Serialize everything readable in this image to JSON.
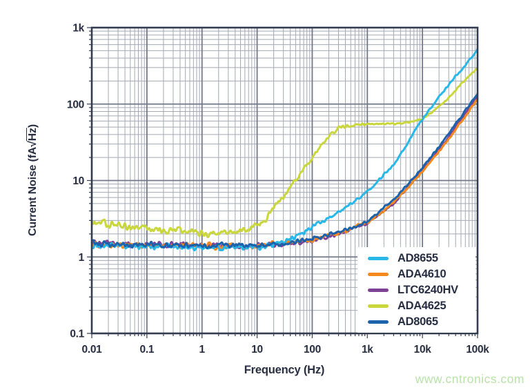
{
  "chart_data": {
    "type": "line",
    "title": "",
    "xlabel": "Frequency (Hz)",
    "ylabel": "Current Noise (fA√Hz)",
    "ylabel_parts": {
      "prefix": "Current Noise (fA",
      "radical": "√",
      "radicand": "Hz",
      "suffix": ")"
    },
    "xscale": "log",
    "yscale": "log",
    "xlim": [
      0.01,
      100000
    ],
    "ylim": [
      0.1,
      1000
    ],
    "grid": "major and minor log grid, both axes",
    "legend_position": "lower right",
    "x_ticks": [
      {
        "value": 0.01,
        "label": "0.01"
      },
      {
        "value": 0.1,
        "label": "0.1"
      },
      {
        "value": 1,
        "label": "1"
      },
      {
        "value": 10,
        "label": "10"
      },
      {
        "value": 100,
        "label": "100"
      },
      {
        "value": 1000,
        "label": "1k"
      },
      {
        "value": 10000,
        "label": "10k"
      },
      {
        "value": 100000,
        "label": "100k"
      }
    ],
    "y_ticks": [
      {
        "value": 0.1,
        "label": "0.1"
      },
      {
        "value": 1,
        "label": "1"
      },
      {
        "value": 10,
        "label": "10"
      },
      {
        "value": 100,
        "label": "100"
      },
      {
        "value": 1000,
        "label": "1k"
      }
    ],
    "series": [
      {
        "name": "AD8655",
        "color": "#29b7e8",
        "points_hz_fa": [
          [
            0.012,
            1.42
          ],
          [
            0.03,
            1.4
          ],
          [
            0.1,
            1.37
          ],
          [
            0.3,
            1.35
          ],
          [
            1,
            1.34
          ],
          [
            3,
            1.34
          ],
          [
            10,
            1.36
          ],
          [
            20,
            1.45
          ],
          [
            40,
            1.72
          ],
          [
            70,
            2.1
          ],
          [
            100,
            2.5
          ],
          [
            200,
            3.2
          ],
          [
            300,
            3.8
          ],
          [
            500,
            5.0
          ],
          [
            700,
            5.9
          ],
          [
            1000,
            7.2
          ],
          [
            2000,
            12
          ],
          [
            3000,
            16
          ],
          [
            5000,
            28
          ],
          [
            7000,
            43
          ],
          [
            10000,
            64
          ],
          [
            20000,
            125
          ],
          [
            30000,
            180
          ],
          [
            50000,
            280
          ],
          [
            100000,
            500
          ]
        ]
      },
      {
        "name": "ADA4610",
        "color": "#f4891e",
        "points_hz_fa": [
          [
            0.012,
            1.46
          ],
          [
            0.05,
            1.43
          ],
          [
            0.2,
            1.41
          ],
          [
            1,
            1.4
          ],
          [
            5,
            1.4
          ],
          [
            10,
            1.42
          ],
          [
            30,
            1.5
          ],
          [
            100,
            1.68
          ],
          [
            200,
            1.9
          ],
          [
            300,
            2.05
          ],
          [
            500,
            2.35
          ],
          [
            1000,
            2.85
          ],
          [
            2000,
            4.0
          ],
          [
            3000,
            5.2
          ],
          [
            5000,
            7.6
          ],
          [
            10000,
            13
          ],
          [
            20000,
            24
          ],
          [
            30000,
            35
          ],
          [
            50000,
            58
          ],
          [
            100000,
            116
          ]
        ]
      },
      {
        "name": "LTC6240HV",
        "color": "#7e4397",
        "points_hz_fa": [
          [
            0.012,
            1.55
          ],
          [
            0.03,
            1.5
          ],
          [
            0.1,
            1.46
          ],
          [
            0.5,
            1.41
          ],
          [
            2,
            1.39
          ],
          [
            10,
            1.39
          ],
          [
            30,
            1.46
          ],
          [
            100,
            1.65
          ],
          [
            300,
            2.0
          ],
          [
            500,
            2.3
          ],
          [
            1000,
            2.75
          ],
          [
            3000,
            5.0
          ],
          [
            10000,
            13.5
          ],
          [
            30000,
            37
          ],
          [
            100000,
            127
          ]
        ]
      },
      {
        "name": "ADA4625",
        "color": "#c9d63c",
        "points_hz_fa": [
          [
            0.012,
            2.85
          ],
          [
            0.03,
            2.6
          ],
          [
            0.07,
            2.4
          ],
          [
            0.15,
            2.25
          ],
          [
            0.3,
            2.12
          ],
          [
            0.7,
            2.05
          ],
          [
            1.5,
            2.0
          ],
          [
            3,
            2.05
          ],
          [
            6,
            2.2
          ],
          [
            10,
            2.6
          ],
          [
            15,
            3.4
          ],
          [
            20,
            4.4
          ],
          [
            30,
            6.2
          ],
          [
            50,
            10
          ],
          [
            70,
            14
          ],
          [
            100,
            20
          ],
          [
            150,
            30
          ],
          [
            200,
            38
          ],
          [
            300,
            48
          ],
          [
            400,
            52
          ],
          [
            600,
            54
          ],
          [
            1000,
            55
          ],
          [
            2000,
            55
          ],
          [
            4000,
            56
          ],
          [
            6000,
            58
          ],
          [
            10000,
            64
          ],
          [
            15000,
            78
          ],
          [
            20000,
            95
          ],
          [
            30000,
            120
          ],
          [
            50000,
            180
          ],
          [
            100000,
            300
          ]
        ]
      },
      {
        "name": "AD8065",
        "color": "#1c63ab",
        "points_hz_fa": [
          [
            0.012,
            1.5
          ],
          [
            0.05,
            1.46
          ],
          [
            0.2,
            1.42
          ],
          [
            1,
            1.4
          ],
          [
            5,
            1.4
          ],
          [
            10,
            1.41
          ],
          [
            30,
            1.49
          ],
          [
            100,
            1.72
          ],
          [
            300,
            2.1
          ],
          [
            1000,
            2.9
          ],
          [
            3000,
            5.6
          ],
          [
            10000,
            14.5
          ],
          [
            30000,
            41
          ],
          [
            100000,
            136
          ]
        ]
      }
    ]
  },
  "colors": {
    "frame": "#333b4f",
    "grid_major": "#717888",
    "grid_minor": "#a3a8b2",
    "text": "#272e42"
  },
  "watermark": {
    "text": "www.cntronics.com",
    "color": "#b9e2a8"
  }
}
